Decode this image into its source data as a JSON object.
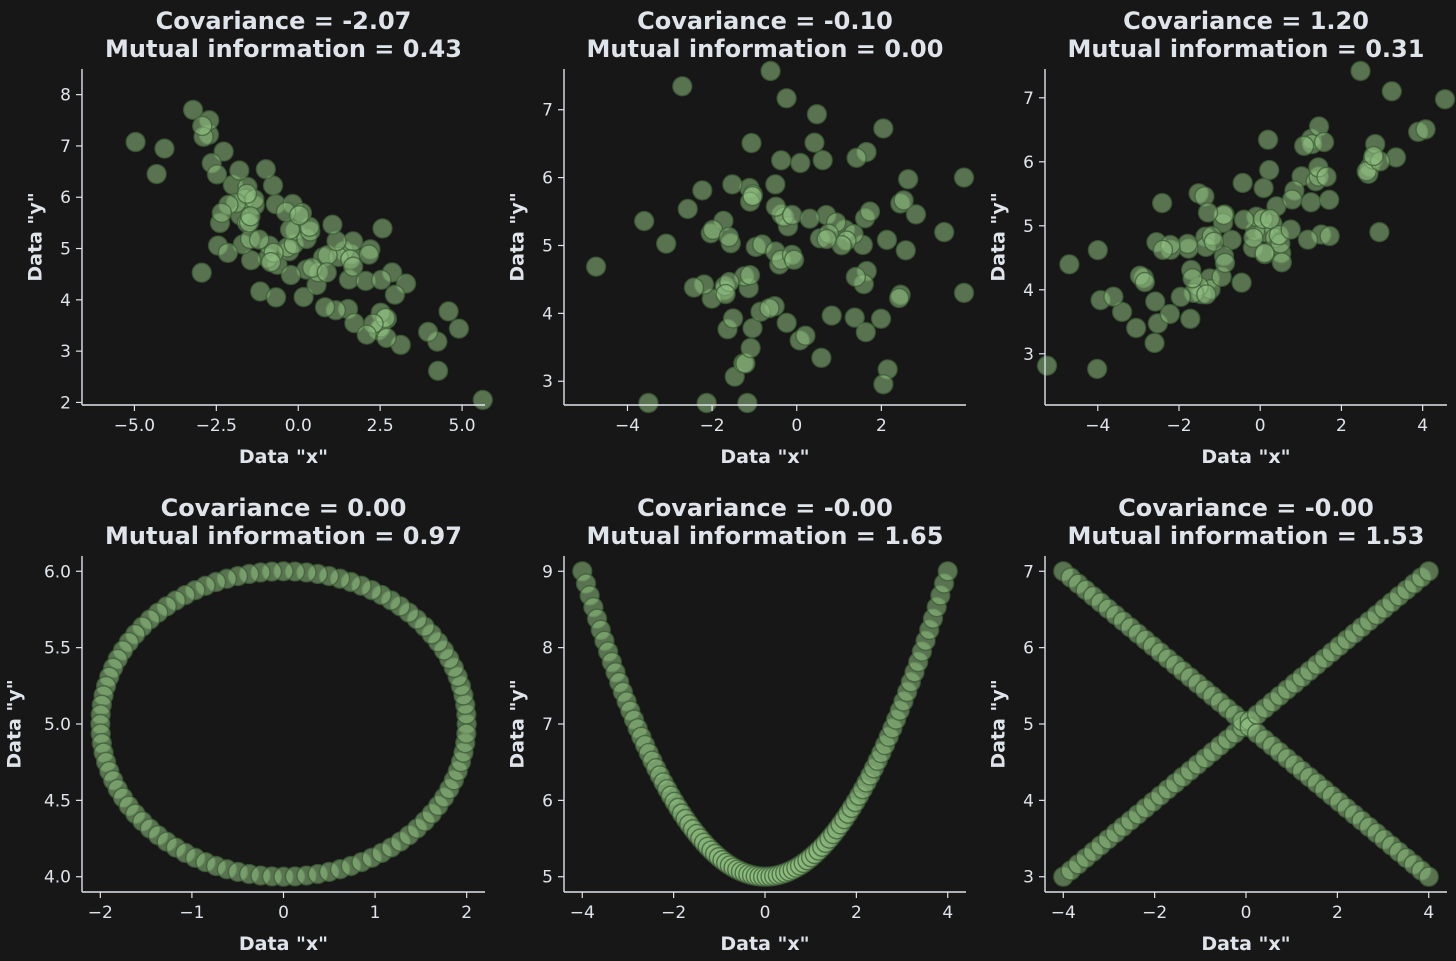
{
  "figure": {
    "background": "#171717",
    "text_color": "#dfe3ea",
    "marker_color": "#8fbf82",
    "marker_edge_color": "#3c5c36"
  },
  "chart_data": [
    {
      "type": "scatter",
      "title_line1": "Covariance = -2.07",
      "title_line2": "Mutual information = 0.43",
      "xlabel": "Data \"x\"",
      "ylabel": "Data \"y\"",
      "xlim": [
        -6.6,
        5.7
      ],
      "ylim": [
        1.95,
        8.5
      ],
      "xticks": [
        -5.0,
        -2.5,
        0.0,
        2.5,
        5.0
      ],
      "xtick_labels": [
        "−5.0",
        "−2.5",
        "0.0",
        "2.5",
        "5.0"
      ],
      "yticks": [
        2,
        3,
        4,
        5,
        6,
        7,
        8
      ],
      "ytick_labels": [
        "2",
        "3",
        "4",
        "5",
        "6",
        "7",
        "8"
      ],
      "generator": "random",
      "seed": 11,
      "n": 100,
      "x_mean": 0.0,
      "x_sd": 2.1,
      "slope": -0.42,
      "intercept": 5.0,
      "noise_sd": 0.6
    },
    {
      "type": "scatter",
      "title_line1": "Covariance = -0.10",
      "title_line2": "Mutual information = 0.00",
      "xlabel": "Data \"x\"",
      "ylabel": "Data \"y\"",
      "xlim": [
        -5.5,
        4.0
      ],
      "ylim": [
        2.65,
        7.6
      ],
      "xticks": [
        -4,
        -2,
        0,
        2
      ],
      "xtick_labels": [
        "−4",
        "−2",
        "0",
        "2"
      ],
      "yticks": [
        3,
        4,
        5,
        6,
        7
      ],
      "ytick_labels": [
        "3",
        "4",
        "5",
        "6",
        "7"
      ],
      "generator": "random",
      "seed": 29,
      "n": 100,
      "x_mean": -0.3,
      "x_sd": 1.8,
      "slope": 0.0,
      "intercept": 5.0,
      "noise_sd": 1.05
    },
    {
      "type": "scatter",
      "title_line1": "Covariance = 1.20",
      "title_line2": "Mutual information = 0.31",
      "xlabel": "Data \"x\"",
      "ylabel": "Data \"y\"",
      "xlim": [
        -5.3,
        4.6
      ],
      "ylim": [
        2.2,
        7.45
      ],
      "xticks": [
        -4,
        -2,
        0,
        2,
        4
      ],
      "xtick_labels": [
        "−4",
        "−2",
        "0",
        "2",
        "4"
      ],
      "yticks": [
        3,
        4,
        5,
        6,
        7
      ],
      "ytick_labels": [
        "3",
        "4",
        "5",
        "6",
        "7"
      ],
      "generator": "random",
      "seed": 47,
      "n": 100,
      "x_mean": 0.0,
      "x_sd": 1.9,
      "slope": 0.34,
      "intercept": 5.0,
      "noise_sd": 0.55
    },
    {
      "type": "scatter",
      "title_line1": "Covariance = 0.00",
      "title_line2": "Mutual information = 0.97",
      "xlabel": "Data \"x\"",
      "ylabel": "Data \"y\"",
      "xlim": [
        -2.2,
        2.2
      ],
      "ylim": [
        3.9,
        6.1
      ],
      "xticks": [
        -2,
        -1,
        0,
        1,
        2
      ],
      "xtick_labels": [
        "−2",
        "−1",
        "0",
        "1",
        "2"
      ],
      "yticks": [
        4.0,
        4.5,
        5.0,
        5.5,
        6.0
      ],
      "ytick_labels": [
        "4.0",
        "4.5",
        "5.0",
        "5.5",
        "6.0"
      ],
      "generator": "circle",
      "n": 100,
      "cx": 0,
      "cy": 5,
      "rx": 2,
      "ry": 1
    },
    {
      "type": "scatter",
      "title_line1": "Covariance = -0.00",
      "title_line2": "Mutual information = 1.65",
      "xlabel": "Data \"x\"",
      "ylabel": "Data \"y\"",
      "xlim": [
        -4.4,
        4.4
      ],
      "ylim": [
        4.8,
        9.2
      ],
      "xticks": [
        -4,
        -2,
        0,
        2,
        4
      ],
      "xtick_labels": [
        "−4",
        "−2",
        "0",
        "2",
        "4"
      ],
      "yticks": [
        5,
        6,
        7,
        8,
        9
      ],
      "ytick_labels": [
        "5",
        "6",
        "7",
        "8",
        "9"
      ],
      "generator": "parabola",
      "n": 100,
      "x_min": -4,
      "x_max": 4,
      "a": 0.25,
      "c": 5
    },
    {
      "type": "scatter",
      "title_line1": "Covariance = -0.00",
      "title_line2": "Mutual information = 1.53",
      "xlabel": "Data \"x\"",
      "ylabel": "Data \"y\"",
      "xlim": [
        -4.4,
        4.4
      ],
      "ylim": [
        2.8,
        7.2
      ],
      "xticks": [
        -4,
        -2,
        0,
        2,
        4
      ],
      "xtick_labels": [
        "−4",
        "−2",
        "0",
        "2",
        "4"
      ],
      "yticks": [
        3,
        4,
        5,
        6,
        7
      ],
      "ytick_labels": [
        "3",
        "4",
        "5",
        "6",
        "7"
      ],
      "generator": "x-cross",
      "n_per_line": 50,
      "x_min": -4,
      "x_max": 4,
      "center_y": 5,
      "slope": 0.5
    }
  ]
}
